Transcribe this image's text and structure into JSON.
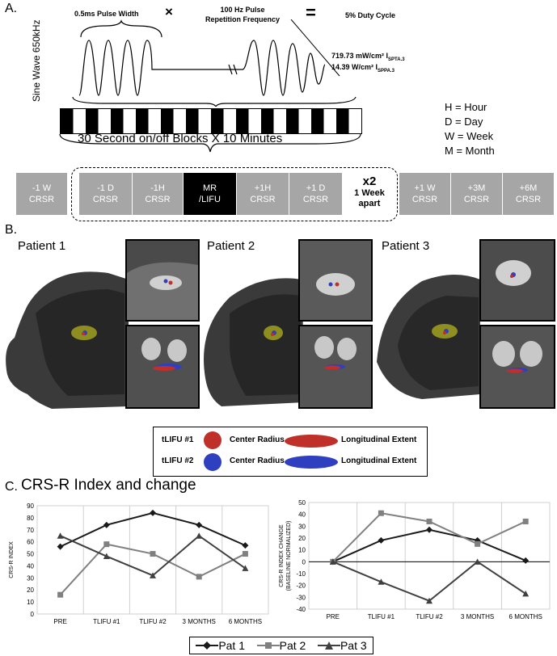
{
  "panel_labels": {
    "a": "A.",
    "b": "B.",
    "c": "C."
  },
  "sonication": {
    "pulse_width": "0.5ms Pulse Width",
    "times": "×",
    "prf": "100 Hz Pulse\nRepetition Frequency",
    "equals": "=",
    "duty": "5% Duty Cycle",
    "sine_label": "Sine Wave 650kHz",
    "ispta": "719.73 mW/cm² I",
    "ispta_sub": "SPTA.3",
    "isppa": "14.39 W/cm² I",
    "isppa_sub": "SPPA.3",
    "blocks": "30 Second on/off Blocks X 10 Minutes"
  },
  "abbreviations": [
    "H = Hour",
    "D = Day",
    "W = Week",
    "M = Month"
  ],
  "timeline": {
    "boxes": [
      {
        "line1": "-1 W",
        "line2": "CRSR"
      },
      {
        "line1": "-1 D",
        "line2": "CRSR"
      },
      {
        "line1": "-1H",
        "line2": "CRSR"
      },
      {
        "line1": "MR",
        "line2": "/LIFU"
      },
      {
        "line1": "+1H",
        "line2": "CRSR"
      },
      {
        "line1": "+1 D",
        "line2": "CRSR"
      },
      {
        "line1": "+1 W",
        "line2": "CRSR"
      },
      {
        "line1": "+3M",
        "line2": "CRSR"
      },
      {
        "line1": "+6M",
        "line2": "CRSR"
      }
    ],
    "repeat": "x2",
    "repeat_note": "1 Week\napart"
  },
  "patients": [
    "Patient 1",
    "Patient 2",
    "Patient 3"
  ],
  "target_legend": {
    "rows": [
      {
        "label": "tLIFU #1",
        "center": "Center Radius",
        "extent": "Longitudinal Extent",
        "color": "#c0302b"
      },
      {
        "label": "tLIFU #2",
        "center": "Center Radius",
        "extent": "Longitudinal Extent",
        "color": "#2e3fbf"
      }
    ]
  },
  "panel_c_title": "CRS-R Index and change",
  "chart_data": [
    {
      "type": "line",
      "categories": [
        "PRE",
        "TLIFU  #1",
        "TLIFU  #2",
        "3 MONTHS",
        "6 MONTHS"
      ],
      "ylabel": "CRS-R INDEX",
      "ylim": [
        0,
        90
      ],
      "yticks": [
        0,
        10,
        20,
        30,
        40,
        50,
        60,
        70,
        80,
        90
      ],
      "series": [
        {
          "name": "Pat 1",
          "values": [
            56,
            74,
            84,
            74,
            57
          ],
          "color": "#1a1a1a"
        },
        {
          "name": "Pat 2",
          "values": [
            16,
            58,
            50,
            31,
            50
          ],
          "color": "#808080"
        },
        {
          "name": "Pat 3",
          "values": [
            65,
            48,
            32,
            65,
            38
          ],
          "color": "#404040"
        }
      ]
    },
    {
      "type": "line",
      "categories": [
        "PRE",
        "TLIFU  #1",
        "TLIFU  #2",
        "3 MONTHS",
        "6 MONTHS"
      ],
      "ylabel": "CRS-R INDEX CHANGE\n(BASELINE NORMALIZED)",
      "ylim": [
        -40,
        50
      ],
      "yticks": [
        -40,
        -30,
        -20,
        -10,
        0,
        10,
        20,
        30,
        40,
        50
      ],
      "series": [
        {
          "name": "Pat 1",
          "values": [
            0,
            18,
            27,
            18,
            1
          ],
          "color": "#1a1a1a"
        },
        {
          "name": "Pat 2",
          "values": [
            0,
            41,
            34,
            15,
            34
          ],
          "color": "#808080"
        },
        {
          "name": "Pat 3",
          "values": [
            0,
            -17,
            -33,
            0,
            -27
          ],
          "color": "#404040"
        }
      ]
    }
  ],
  "series_legend": [
    "Pat 1",
    "Pat 2",
    "Pat 3"
  ]
}
